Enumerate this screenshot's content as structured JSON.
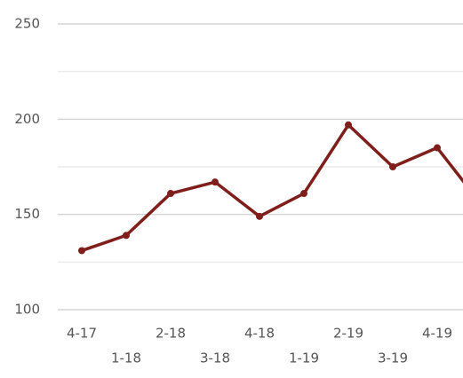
{
  "chart_data": {
    "type": "line",
    "categories": [
      "4-17",
      "1-18",
      "2-18",
      "3-18",
      "4-18",
      "1-19",
      "2-19",
      "3-19",
      "4-19",
      null
    ],
    "series": [
      {
        "color": "#7f1f1c",
        "values": [
          131,
          139,
          161,
          167,
          149,
          161,
          197,
          175,
          185,
          155
        ]
      }
    ],
    "ylim": [
      100,
      250
    ],
    "yticks": [
      100,
      150,
      200,
      250
    ],
    "minor_yticks": [
      125,
      175,
      225
    ],
    "grid": true
  }
}
